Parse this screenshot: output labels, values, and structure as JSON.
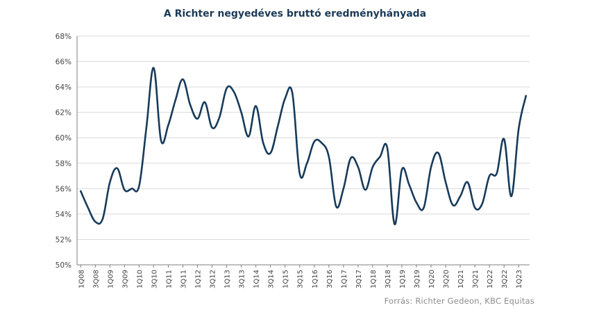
{
  "chart_data": {
    "type": "line",
    "title": "A Richter negyedéves bruttó eredményhányada",
    "source": "Forrás: Richter Gedeon, KBC Equitas",
    "ylim": [
      50,
      68
    ],
    "yticks": [
      50,
      52,
      54,
      56,
      58,
      60,
      62,
      64,
      66,
      68
    ],
    "ytick_labels": [
      "50%",
      "52%",
      "54%",
      "56%",
      "58%",
      "60%",
      "62%",
      "64%",
      "66%",
      "68%"
    ],
    "grid": "horizontal",
    "line_color": "#163a5a",
    "grid_color": "#d9d9d9",
    "categories": [
      "1Q08",
      "2Q08",
      "3Q08",
      "4Q08",
      "1Q09",
      "2Q09",
      "3Q09",
      "4Q09",
      "1Q10",
      "2Q10",
      "3Q10",
      "4Q10",
      "1Q11",
      "2Q11",
      "3Q11",
      "4Q11",
      "1Q12",
      "2Q12",
      "3Q12",
      "4Q12",
      "1Q13",
      "2Q13",
      "3Q13",
      "4Q13",
      "1Q14",
      "2Q14",
      "3Q14",
      "4Q14",
      "1Q15",
      "2Q15",
      "3Q15",
      "4Q15",
      "1Q16",
      "2Q16",
      "3Q16",
      "4Q16",
      "1Q17",
      "2Q17",
      "3Q17",
      "4Q17",
      "1Q18",
      "2Q18",
      "3Q18",
      "4Q18",
      "1Q19",
      "2Q19",
      "3Q19",
      "4Q19",
      "1Q20",
      "2Q20",
      "3Q20",
      "4Q20",
      "1Q21",
      "2Q21",
      "3Q21",
      "4Q21",
      "1Q22",
      "2Q22",
      "3Q22",
      "4Q22",
      "1Q23",
      "2Q23"
    ],
    "xtick_labels": [
      "1Q08",
      "3Q08",
      "1Q09",
      "3Q09",
      "1Q10",
      "3Q10",
      "1Q11",
      "3Q11",
      "1Q12",
      "3Q12",
      "1Q13",
      "3Q13",
      "1Q14",
      "3Q14",
      "1Q15",
      "3Q15",
      "1Q16",
      "3Q16",
      "1Q17",
      "3Q17",
      "1Q18",
      "3Q18",
      "1Q19",
      "3Q19",
      "1Q20",
      "3Q20",
      "1Q21",
      "3Q21",
      "1Q22",
      "3Q22",
      "1Q23"
    ],
    "series": [
      {
        "values": [
          55.8,
          54.5,
          53.4,
          53.6,
          56.5,
          57.6,
          55.9,
          56.0,
          56.2,
          60.8,
          65.5,
          59.8,
          61.0,
          63.0,
          64.6,
          62.6,
          61.5,
          62.8,
          60.8,
          61.6,
          63.9,
          63.6,
          62.0,
          60.1,
          62.5,
          59.6,
          58.8,
          60.9,
          63.1,
          63.5,
          57.2,
          58.0,
          59.7,
          59.6,
          58.5,
          54.6,
          56.0,
          58.4,
          57.7,
          55.9,
          57.7,
          58.5,
          59.2,
          53.2,
          57.5,
          56.3,
          54.9,
          54.5,
          57.7,
          58.8,
          56.5,
          54.7,
          55.4,
          56.5,
          54.5,
          54.8,
          57.0,
          57.2,
          59.9,
          55.4,
          60.7,
          63.3
        ]
      }
    ]
  }
}
